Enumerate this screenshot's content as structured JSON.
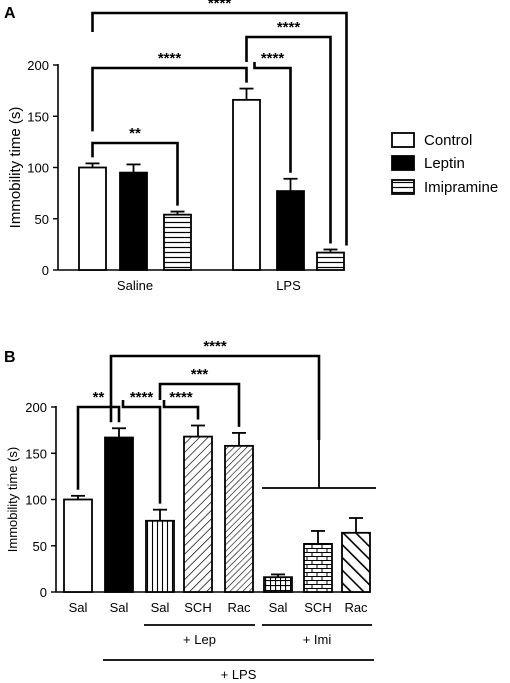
{
  "chart_data": [
    {
      "type": "bar",
      "panel": "A",
      "ylabel": "Immobility time (s)",
      "ylim": [
        0,
        200
      ],
      "yticks": [
        0,
        50,
        100,
        150,
        200
      ],
      "categories": [
        "Saline",
        "LPS"
      ],
      "series": [
        {
          "name": "Control",
          "pattern": "white",
          "values": [
            100,
            166
          ],
          "errors": [
            4,
            11
          ]
        },
        {
          "name": "Leptin",
          "pattern": "black",
          "values": [
            95,
            77
          ],
          "errors": [
            8,
            12
          ]
        },
        {
          "name": "Imipramine",
          "pattern": "hlines",
          "values": [
            54,
            17
          ],
          "errors": [
            3,
            3
          ]
        }
      ],
      "legend_position": "right",
      "significance": [
        {
          "between": [
            [
              0,
              0
            ],
            [
              0,
              2
            ]
          ],
          "label": "**"
        },
        {
          "between": [
            [
              0,
              0
            ],
            [
              1,
              0
            ]
          ],
          "label": "****"
        },
        {
          "between": [
            [
              1,
              0
            ],
            [
              1,
              1
            ]
          ],
          "label": "****"
        },
        {
          "between": [
            [
              1,
              0
            ],
            [
              1,
              2
            ]
          ],
          "label": "****"
        },
        {
          "between": [
            [
              0,
              0
            ],
            [
              1,
              2
            ]
          ],
          "label": "****"
        }
      ]
    },
    {
      "type": "bar",
      "panel": "B",
      "ylabel": "Immobility time (s)",
      "ylim": [
        0,
        200
      ],
      "yticks": [
        0,
        50,
        100,
        150,
        200
      ],
      "bars": [
        {
          "label": "Sal",
          "value": 100,
          "error": 4,
          "pattern": "white"
        },
        {
          "label": "Sal",
          "value": 167,
          "error": 10,
          "pattern": "black"
        },
        {
          "label": "Sal",
          "value": 77,
          "error": 12,
          "pattern": "vlines"
        },
        {
          "label": "SCH",
          "value": 168,
          "error": 12,
          "pattern": "diag-right"
        },
        {
          "label": "Rac",
          "value": 158,
          "error": 14,
          "pattern": "diag-right-dense"
        },
        {
          "label": "Sal",
          "value": 16,
          "error": 3,
          "pattern": "grid"
        },
        {
          "label": "SCH",
          "value": 52,
          "error": 14,
          "pattern": "bricks"
        },
        {
          "label": "Rac",
          "value": 64,
          "error": 16,
          "pattern": "diag-left"
        }
      ],
      "groups": [
        {
          "label": "+ Lep",
          "from": 2,
          "to": 4
        },
        {
          "label": "+ Imi",
          "from": 5,
          "to": 7
        },
        {
          "label": "+ LPS",
          "from": 1,
          "to": 7
        }
      ],
      "significance": [
        {
          "between": [
            0,
            1
          ],
          "label": "**"
        },
        {
          "between": [
            1,
            2
          ],
          "label": "****"
        },
        {
          "between": [
            2,
            3
          ],
          "label": "****"
        },
        {
          "between": [
            2,
            4
          ],
          "label": "***"
        },
        {
          "between": [
            1,
            "5-7"
          ],
          "label": "****"
        }
      ]
    }
  ]
}
